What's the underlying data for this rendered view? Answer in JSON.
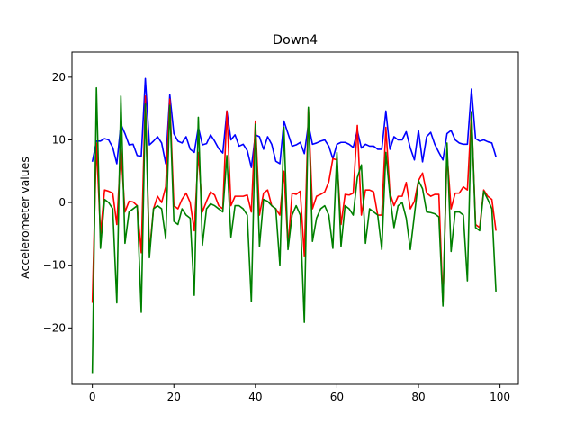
{
  "chart_data": {
    "type": "line",
    "title": "Down4",
    "xlabel": "",
    "ylabel": "Accelerometer values",
    "xlim": [
      -5,
      104.5
    ],
    "ylim": [
      -29,
      24
    ],
    "xticks": [
      0,
      20,
      40,
      60,
      80,
      100
    ],
    "yticks": [
      -20,
      -10,
      0,
      10,
      20
    ],
    "grid": false,
    "legend": "none",
    "x": [
      0,
      1,
      2,
      3,
      4,
      5,
      6,
      7,
      8,
      9,
      10,
      11,
      12,
      13,
      14,
      15,
      16,
      17,
      18,
      19,
      20,
      21,
      22,
      23,
      24,
      25,
      26,
      27,
      28,
      29,
      30,
      31,
      32,
      33,
      34,
      35,
      36,
      37,
      38,
      39,
      40,
      41,
      42,
      43,
      44,
      45,
      46,
      47,
      48,
      49,
      50,
      51,
      52,
      53,
      54,
      55,
      56,
      57,
      58,
      59,
      60,
      61,
      62,
      63,
      64,
      65,
      66,
      67,
      68,
      69,
      70,
      71,
      72,
      73,
      74,
      75,
      76,
      77,
      78,
      79,
      80,
      81,
      82,
      83,
      84,
      85,
      86,
      87,
      88,
      89,
      90,
      91,
      92,
      93,
      94,
      95,
      96,
      97,
      98,
      99
    ],
    "series": [
      {
        "color": "#0000ff",
        "values": [
          6.5,
          9.8,
          9.8,
          10.2,
          10.0,
          8.8,
          6.2,
          12.5,
          11.0,
          9.2,
          9.3,
          7.5,
          7.4,
          19.8,
          9.2,
          9.8,
          10.5,
          9.5,
          6.2,
          17.2,
          11.0,
          9.8,
          9.5,
          10.5,
          8.5,
          8.0,
          12.0,
          9.2,
          9.4,
          10.8,
          9.8,
          8.6,
          7.9,
          14.6,
          10.0,
          10.8,
          9.0,
          9.3,
          8.3,
          5.6,
          10.8,
          10.5,
          8.5,
          10.5,
          9.3,
          6.6,
          6.2,
          13.0,
          11.0,
          9.0,
          9.2,
          9.6,
          7.8,
          12.5,
          9.3,
          9.5,
          9.8,
          10.0,
          9.0,
          7.0,
          9.3,
          9.6,
          9.6,
          9.3,
          8.8,
          11.5,
          8.7,
          9.3,
          9.0,
          9.0,
          8.5,
          8.5,
          14.6,
          8.5,
          10.5,
          10.0,
          10.0,
          11.3,
          8.7,
          6.8,
          11.5,
          6.5,
          10.5,
          11.2,
          9.3,
          8.0,
          6.8,
          11.0,
          11.5,
          10.0,
          9.5,
          9.3,
          9.3,
          18.1,
          10.2,
          9.8,
          10.0,
          9.7,
          9.5,
          7.3
        ]
      },
      {
        "color": "#ff0000",
        "values": [
          -16.0,
          9.5,
          -5.0,
          2.0,
          1.8,
          1.5,
          -3.5,
          8.5,
          -1.5,
          0.2,
          0.1,
          -0.5,
          -8.0,
          17.0,
          -8.0,
          -1.0,
          1.0,
          0.0,
          2.5,
          16.5,
          -0.5,
          -1.0,
          0.5,
          1.5,
          0.0,
          -4.5,
          8.0,
          -1.5,
          0.2,
          1.7,
          1.2,
          -0.5,
          -1.0,
          14.6,
          -0.5,
          1.0,
          1.0,
          1.0,
          1.2,
          -1.5,
          13.0,
          -2.0,
          1.5,
          2.0,
          -0.5,
          -1.0,
          -2.0,
          5.0,
          -7.0,
          1.5,
          1.3,
          1.8,
          -8.5,
          15.0,
          -1.0,
          1.0,
          1.3,
          1.7,
          3.3,
          7.0,
          6.8,
          -3.5,
          1.3,
          1.2,
          1.5,
          12.3,
          -2.0,
          2.0,
          2.0,
          1.7,
          -2.0,
          -2.0,
          12.0,
          1.5,
          -0.5,
          1.0,
          1.0,
          3.2,
          -1.0,
          0.2,
          3.5,
          4.7,
          1.5,
          1.0,
          1.3,
          1.3,
          -16.0,
          8.0,
          -1.0,
          1.5,
          1.5,
          2.5,
          2.0,
          14.5,
          -3.5,
          -4.0,
          2.0,
          1.0,
          0.5,
          -4.5
        ]
      },
      {
        "color": "#008000",
        "values": [
          -27.2,
          18.3,
          -7.3,
          0.5,
          0.0,
          -1.0,
          -16.0,
          17.0,
          -6.5,
          -1.5,
          -1.0,
          -0.5,
          -17.5,
          15.7,
          -8.8,
          -1.0,
          -0.5,
          -1.0,
          -5.8,
          15.5,
          -3.0,
          -3.5,
          -1.0,
          -2.0,
          -2.5,
          -14.8,
          13.6,
          -6.8,
          -1.0,
          -0.2,
          -0.5,
          -1.0,
          -1.5,
          7.5,
          -5.5,
          -0.5,
          -0.5,
          -1.0,
          -2.0,
          -15.8,
          12.5,
          -7.0,
          0.5,
          0.2,
          -0.5,
          -1.0,
          -10.0,
          12.0,
          -7.5,
          -2.0,
          -0.5,
          -2.0,
          -19.1,
          15.2,
          -6.2,
          -2.5,
          -1.0,
          -0.5,
          -2.0,
          -7.3,
          8.0,
          -7.0,
          -0.5,
          -1.0,
          -2.0,
          4.0,
          6.0,
          -6.5,
          -1.0,
          -1.5,
          -2.0,
          -7.5,
          8.0,
          1.0,
          -4.0,
          -0.5,
          0.0,
          -2.5,
          -7.5,
          -2.0,
          3.5,
          2.2,
          -1.5,
          -1.6,
          -1.8,
          -2.3,
          -16.5,
          9.5,
          -7.8,
          -1.5,
          -1.5,
          -2.0,
          -12.5,
          14.5,
          -4.0,
          -4.5,
          1.8,
          0.5,
          -1.0,
          -14.2
        ]
      }
    ]
  }
}
